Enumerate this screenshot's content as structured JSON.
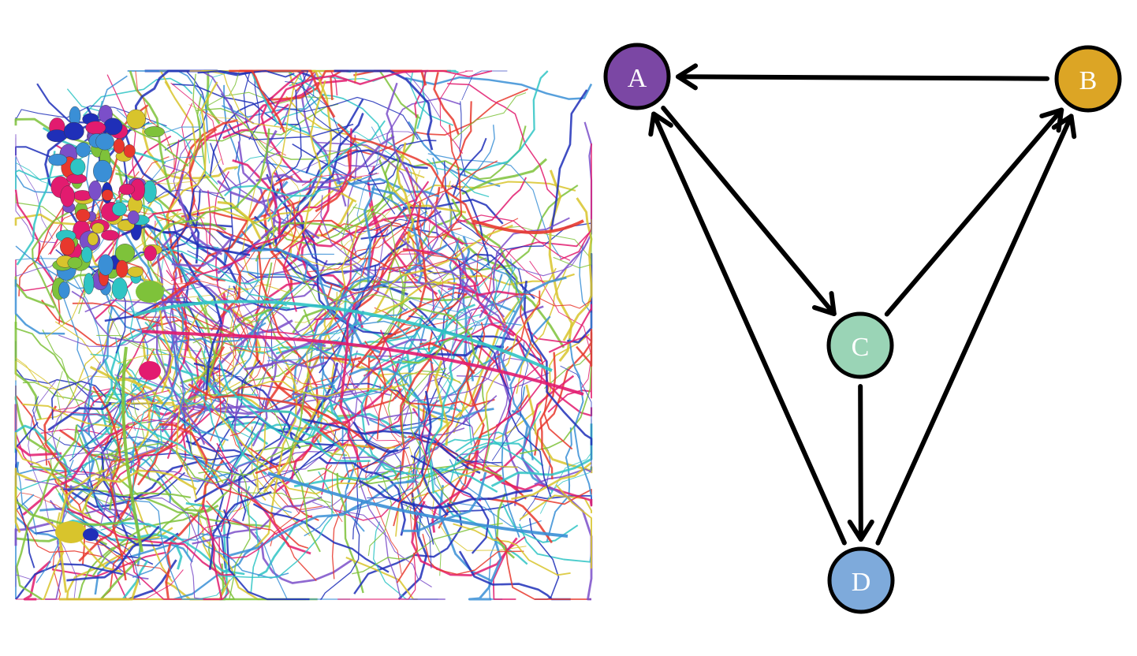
{
  "figure": {
    "left_panel": {
      "colors": [
        "#7ec23a",
        "#7b4fc9",
        "#e21b6f",
        "#3a8fd6",
        "#d8c42c",
        "#2fc4c4",
        "#e8382d",
        "#1f2fb8"
      ]
    },
    "right_panel": {
      "node_colors": {
        "A": "#7b47a4",
        "B": "#dca525",
        "C": "#9ad4b6",
        "D": "#7eaadb"
      },
      "nodes": [
        {
          "id": "A",
          "label": "A"
        },
        {
          "id": "B",
          "label": "B"
        },
        {
          "id": "C",
          "label": "C"
        },
        {
          "id": "D",
          "label": "D"
        }
      ],
      "edges": [
        {
          "from": "B",
          "to": "A"
        },
        {
          "from": "A",
          "to": "C"
        },
        {
          "from": "C",
          "to": "B"
        },
        {
          "from": "C",
          "to": "D"
        },
        {
          "from": "D",
          "to": "A"
        },
        {
          "from": "D",
          "to": "B"
        }
      ]
    }
  }
}
